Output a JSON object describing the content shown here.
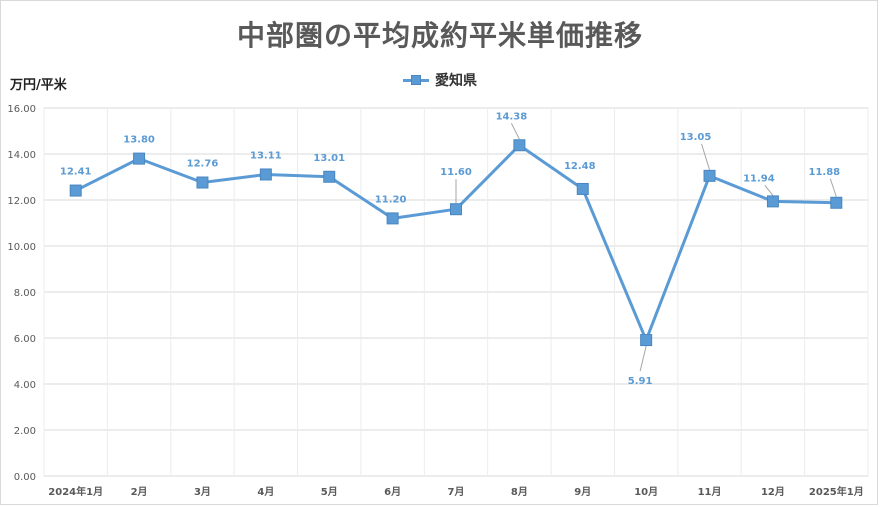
{
  "chart_data": {
    "type": "line",
    "title": "中部圏の平均成約平米単価推移",
    "ylabel": "万円/平米",
    "xlabel": "",
    "categories": [
      "2024年1月",
      "2月",
      "3月",
      "4月",
      "5月",
      "6月",
      "7月",
      "8月",
      "9月",
      "10月",
      "11月",
      "12月",
      "2025年1月"
    ],
    "series": [
      {
        "name": "愛知県",
        "values": [
          12.41,
          13.8,
          12.76,
          13.11,
          13.01,
          11.2,
          11.6,
          14.38,
          12.48,
          5.91,
          13.05,
          11.94,
          11.88
        ],
        "labels": [
          "12.41",
          "13.80",
          "12.76",
          "13.11",
          "13.01",
          "11.20",
          "11.60",
          "14.38",
          "12.48",
          "5.91",
          "13.05",
          "11.94",
          "11.88"
        ]
      }
    ],
    "ylim": [
      0,
      16
    ],
    "yticks": [
      "0.00",
      "2.00",
      "4.00",
      "6.00",
      "8.00",
      "10.00",
      "12.00",
      "14.00",
      "16.00"
    ],
    "grid": true,
    "legend_position": "top-center",
    "colors": {
      "line": "#5B9BD5",
      "label": "#5B9BD5",
      "grid": "#d9d9d9",
      "axis_text": "#595959"
    }
  }
}
